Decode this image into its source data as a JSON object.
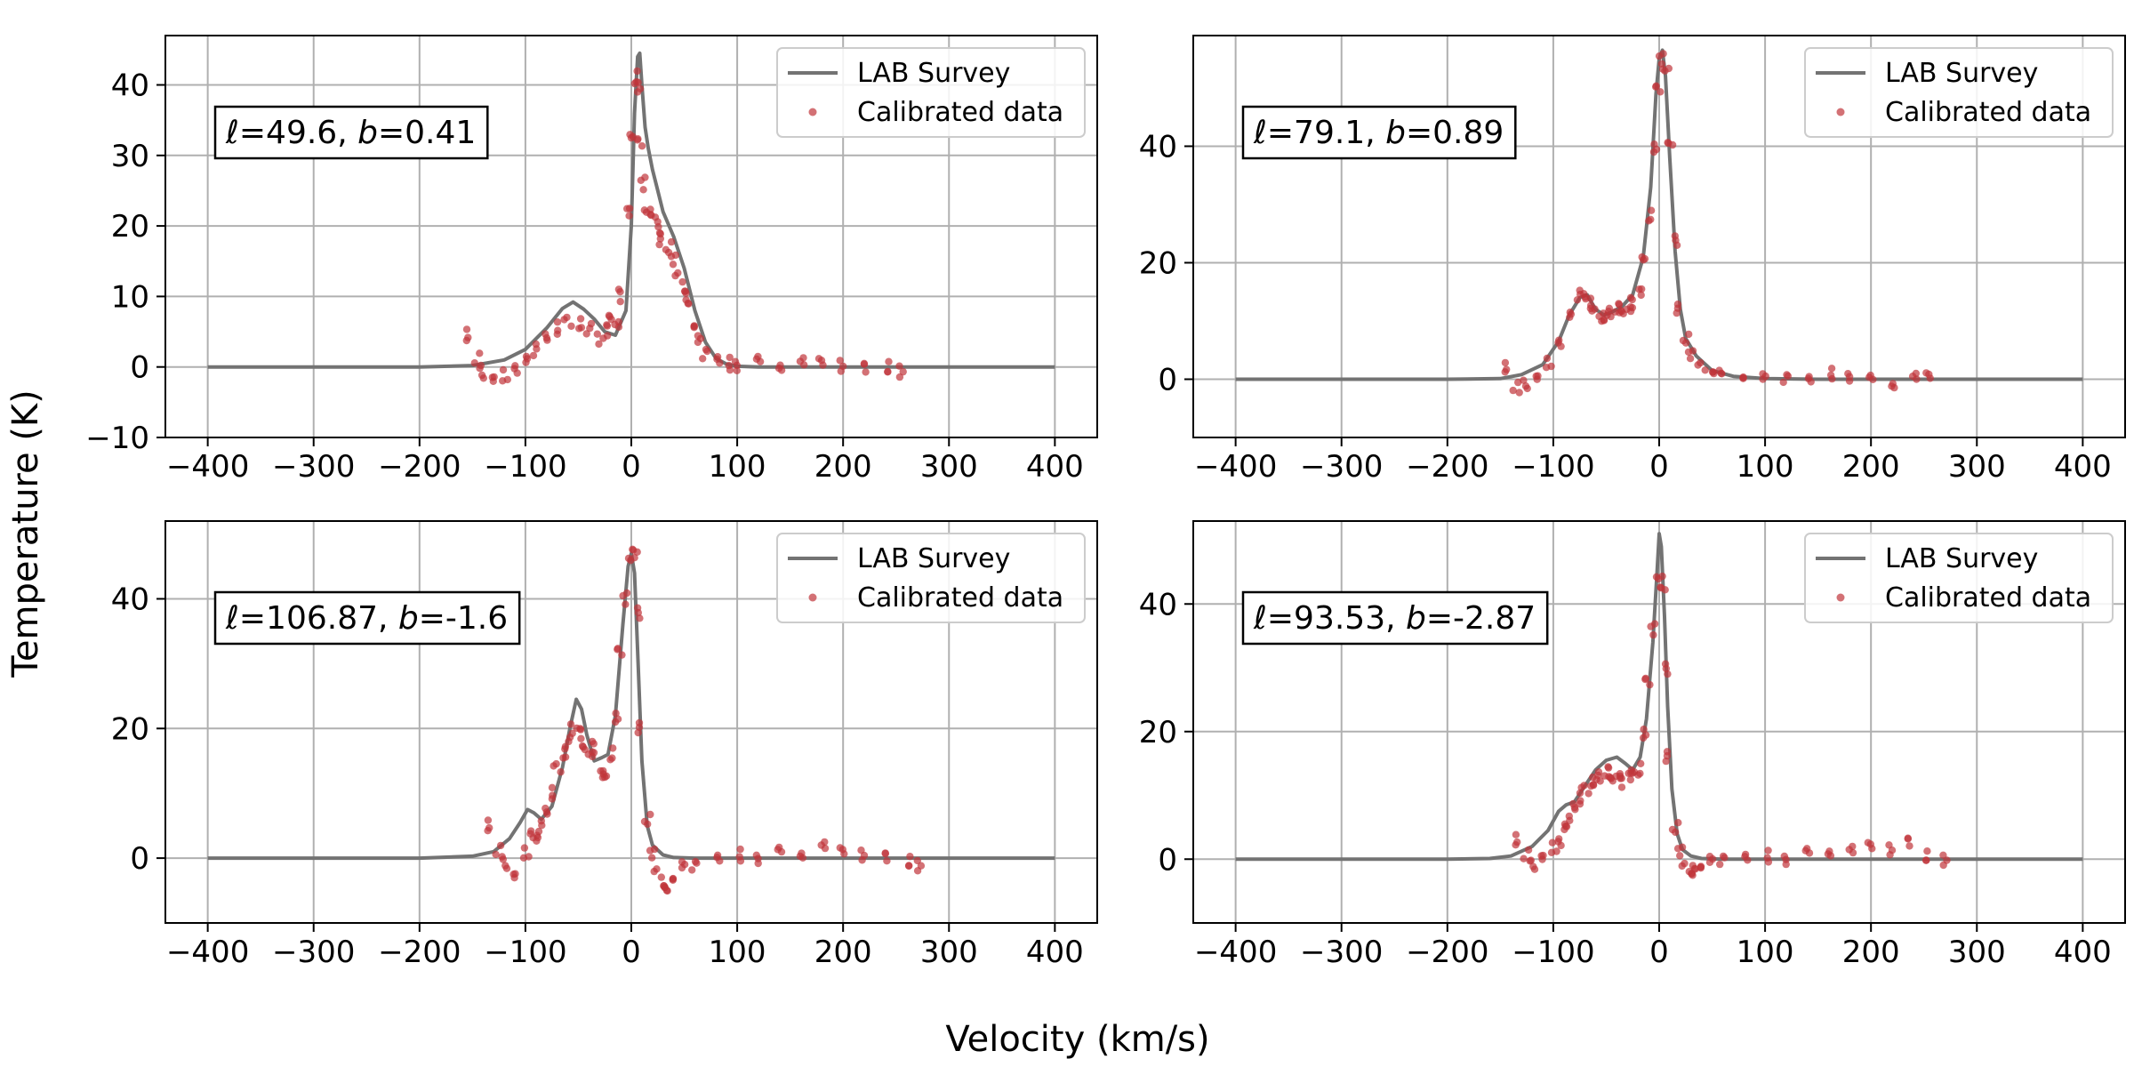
{
  "figure": {
    "xlabel": "Velocity (km/s)",
    "ylabel": "Temperature (K)"
  },
  "chart_data": [
    {
      "type": "line",
      "title": "",
      "annotation": {
        "l": "49.6",
        "b": "0.41"
      },
      "xlim": [
        -440,
        440
      ],
      "ylim": [
        -10,
        47
      ],
      "xticks": [
        -400,
        -300,
        -200,
        -100,
        0,
        100,
        200,
        300,
        400
      ],
      "yticks": [
        -10,
        0,
        10,
        20,
        30,
        40
      ],
      "grid": true,
      "legend_position": "top-right",
      "series": [
        {
          "name": "LAB Survey",
          "kind": "line",
          "color": "#737373",
          "x": [
            -400,
            -200,
            -150,
            -120,
            -100,
            -80,
            -65,
            -55,
            -45,
            -35,
            -25,
            -15,
            -5,
            0,
            3,
            6,
            8,
            10,
            13,
            16,
            20,
            25,
            30,
            40,
            50,
            60,
            70,
            80,
            90,
            100,
            120,
            150,
            200,
            300,
            400
          ],
          "y": [
            0,
            0,
            0.2,
            1.0,
            2.5,
            5.5,
            8.3,
            9.2,
            8.2,
            6.8,
            5.0,
            4.5,
            8.0,
            20,
            36,
            44,
            44.5,
            40,
            34,
            31,
            28,
            25,
            22,
            18.5,
            14,
            8,
            3.5,
            1.2,
            0.4,
            0.1,
            0,
            0,
            0,
            0,
            0
          ]
        },
        {
          "name": "Calibrated data",
          "kind": "scatter",
          "color": "#c0343a",
          "x": [
            -152,
            -145,
            -140,
            -130,
            -120,
            -110,
            -100,
            -90,
            -80,
            -70,
            -60,
            -50,
            -40,
            -30,
            -25,
            -20,
            -15,
            -10,
            -5,
            0,
            3,
            6,
            9,
            12,
            15,
            20,
            25,
            30,
            35,
            40,
            45,
            50,
            55,
            60,
            65,
            70,
            80,
            90,
            100,
            120,
            140,
            160,
            180,
            200,
            220,
            240,
            255
          ],
          "y": [
            4.5,
            1.0,
            -1.0,
            -1.5,
            -1.0,
            0,
            1.0,
            2.5,
            4.0,
            5.5,
            6.5,
            6.0,
            5.5,
            4.0,
            5.0,
            7.0,
            6.0,
            10.0,
            22.0,
            32.0,
            41.0,
            40.0,
            32.0,
            26.0,
            22.0,
            21.0,
            20.0,
            18.0,
            17.0,
            15.0,
            13.0,
            11.0,
            9.0,
            6.0,
            3.5,
            2.0,
            1.0,
            0.5,
            0.3,
            0.8,
            0.5,
            0.3,
            0.6,
            0.2,
            -0.3,
            0.0,
            -0.5
          ]
        }
      ]
    },
    {
      "type": "line",
      "title": "",
      "annotation": {
        "l": "79.1",
        "b": "0.89"
      },
      "xlim": [
        -440,
        440
      ],
      "ylim": [
        -10,
        59
      ],
      "xticks": [
        -400,
        -300,
        -200,
        -100,
        0,
        100,
        200,
        300,
        400
      ],
      "yticks": [
        0,
        20,
        40
      ],
      "grid": true,
      "legend_position": "top-right",
      "series": [
        {
          "name": "LAB Survey",
          "kind": "line",
          "color": "#737373",
          "x": [
            -400,
            -200,
            -150,
            -130,
            -110,
            -95,
            -85,
            -75,
            -68,
            -60,
            -52,
            -45,
            -35,
            -25,
            -15,
            -8,
            -3,
            0,
            3,
            6,
            10,
            15,
            20,
            25,
            35,
            50,
            70,
            100,
            150,
            200,
            300,
            400
          ],
          "y": [
            0,
            0,
            0.1,
            0.8,
            2.5,
            6.5,
            11.0,
            14.0,
            14.5,
            12.0,
            11.0,
            11.5,
            12.5,
            14.5,
            21.0,
            33.0,
            49.0,
            55.0,
            56.5,
            52.0,
            38.0,
            22.0,
            12.0,
            7.0,
            4.0,
            1.5,
            0.5,
            0.1,
            0,
            0,
            0,
            0
          ]
        },
        {
          "name": "Calibrated data",
          "kind": "scatter",
          "color": "#c0343a",
          "x": [
            -142,
            -135,
            -125,
            -115,
            -105,
            -95,
            -85,
            -75,
            -70,
            -65,
            -60,
            -55,
            -50,
            -45,
            -40,
            -35,
            -30,
            -25,
            -20,
            -15,
            -10,
            -5,
            0,
            3,
            6,
            10,
            15,
            20,
            25,
            30,
            40,
            50,
            60,
            80,
            100,
            120,
            140,
            160,
            180,
            200,
            220,
            240,
            255
          ],
          "y": [
            2.0,
            -1.5,
            -1.0,
            0.5,
            3.0,
            6.5,
            11.0,
            14.5,
            14.0,
            13.0,
            11.5,
            10.5,
            11.0,
            11.5,
            12.0,
            11.5,
            12.0,
            13.0,
            15.0,
            20.0,
            28.0,
            40.0,
            50.0,
            55.0,
            53.0,
            40.0,
            24.0,
            12.0,
            7.0,
            4.0,
            2.5,
            1.5,
            1.0,
            0.5,
            0.0,
            0.3,
            0.0,
            1.0,
            0.5,
            0.0,
            -0.5,
            0.0,
            0.5
          ]
        }
      ]
    },
    {
      "type": "line",
      "title": "",
      "annotation": {
        "l": "106.87",
        "b": "-1.6"
      },
      "xlim": [
        -440,
        440
      ],
      "ylim": [
        -10,
        52
      ],
      "xticks": [
        -400,
        -300,
        -200,
        -100,
        0,
        100,
        200,
        300,
        400
      ],
      "yticks": [
        0,
        20,
        40
      ],
      "grid": true,
      "legend_position": "top-right",
      "series": [
        {
          "name": "LAB Survey",
          "kind": "line",
          "color": "#737373",
          "x": [
            -400,
            -200,
            -150,
            -130,
            -115,
            -105,
            -98,
            -92,
            -85,
            -75,
            -65,
            -58,
            -52,
            -47,
            -42,
            -35,
            -28,
            -22,
            -15,
            -8,
            -3,
            0,
            3,
            6,
            10,
            15,
            20,
            30,
            40,
            60,
            100,
            150,
            200,
            300,
            400
          ],
          "y": [
            0,
            0,
            0.3,
            1.0,
            3.0,
            5.5,
            7.5,
            7.0,
            6.0,
            8.0,
            14.0,
            20.0,
            24.5,
            23.0,
            19.0,
            15.0,
            15.5,
            16.0,
            22.0,
            36.0,
            45.0,
            47.0,
            44.0,
            32.0,
            15.0,
            5.0,
            2.0,
            0.5,
            0.1,
            0,
            0,
            0,
            0,
            0,
            0
          ]
        },
        {
          "name": "Calibrated data",
          "kind": "scatter",
          "color": "#c0343a",
          "x": [
            -132,
            -125,
            -118,
            -110,
            -100,
            -95,
            -90,
            -85,
            -80,
            -75,
            -70,
            -65,
            -60,
            -55,
            -50,
            -45,
            -40,
            -35,
            -30,
            -25,
            -20,
            -15,
            -10,
            -5,
            0,
            3,
            6,
            10,
            15,
            20,
            25,
            30,
            35,
            40,
            50,
            60,
            80,
            100,
            120,
            140,
            160,
            180,
            200,
            220,
            240,
            260,
            272
          ],
          "y": [
            5.0,
            1.0,
            -1.0,
            -2.5,
            1.0,
            4.0,
            3.0,
            5.0,
            7.0,
            10.0,
            14.0,
            16.0,
            18.0,
            20.0,
            19.0,
            17.0,
            16.0,
            17.0,
            13.0,
            12.0,
            16.0,
            22.0,
            32.0,
            40.0,
            46.0,
            47.0,
            38.0,
            20.0,
            6.0,
            0.5,
            -2.0,
            -4.0,
            -5.0,
            -3.0,
            -1.5,
            -1.0,
            0.0,
            0.5,
            0.0,
            1.0,
            1.0,
            1.5,
            1.0,
            0.5,
            0.0,
            -0.5,
            -1.0
          ]
        }
      ]
    },
    {
      "type": "line",
      "title": "",
      "annotation": {
        "l": "93.53",
        "b": "-2.87"
      },
      "xlim": [
        -440,
        440
      ],
      "ylim": [
        -10,
        53
      ],
      "xticks": [
        -400,
        -300,
        -200,
        -100,
        0,
        100,
        200,
        300,
        400
      ],
      "yticks": [
        0,
        20,
        40
      ],
      "grid": true,
      "legend_position": "top-right",
      "series": [
        {
          "name": "LAB Survey",
          "kind": "line",
          "color": "#737373",
          "x": [
            -400,
            -200,
            -160,
            -140,
            -120,
            -105,
            -95,
            -88,
            -80,
            -70,
            -60,
            -50,
            -40,
            -32,
            -25,
            -18,
            -12,
            -6,
            -2,
            0,
            2,
            5,
            8,
            12,
            17,
            22,
            30,
            40,
            60,
            100,
            150,
            200,
            300,
            400
          ],
          "y": [
            0,
            0,
            0.1,
            0.5,
            2.0,
            4.5,
            7.5,
            8.5,
            9.0,
            11.5,
            14.0,
            15.5,
            16.0,
            15.0,
            14.0,
            16.0,
            22.0,
            34.0,
            45.0,
            51.0,
            49.0,
            38.0,
            24.0,
            11.0,
            4.0,
            1.5,
            0.5,
            0.1,
            0,
            0,
            0,
            0,
            0,
            0
          ]
        },
        {
          "name": "Calibrated data",
          "kind": "scatter",
          "color": "#c0343a",
          "x": [
            -132,
            -125,
            -118,
            -110,
            -100,
            -95,
            -90,
            -85,
            -80,
            -75,
            -70,
            -65,
            -60,
            -55,
            -50,
            -45,
            -40,
            -35,
            -30,
            -25,
            -20,
            -15,
            -10,
            -5,
            0,
            3,
            6,
            10,
            15,
            20,
            25,
            30,
            35,
            40,
            50,
            60,
            80,
            100,
            120,
            140,
            160,
            180,
            200,
            220,
            235,
            250,
            270
          ],
          "y": [
            3.0,
            0.5,
            -1.0,
            0.5,
            2.0,
            3.0,
            5.0,
            6.0,
            8.0,
            9.5,
            11.0,
            12.0,
            12.5,
            13.0,
            13.5,
            12.5,
            13.0,
            12.0,
            13.0,
            13.0,
            14.0,
            20.0,
            28.0,
            36.0,
            44.0,
            42.0,
            30.0,
            16.0,
            5.0,
            1.0,
            -1.0,
            -2.0,
            -1.5,
            -1.0,
            -0.5,
            0.0,
            0.3,
            0.5,
            0.0,
            1.0,
            1.5,
            1.0,
            2.0,
            1.5,
            2.5,
            0.5,
            0.0
          ]
        }
      ]
    }
  ]
}
